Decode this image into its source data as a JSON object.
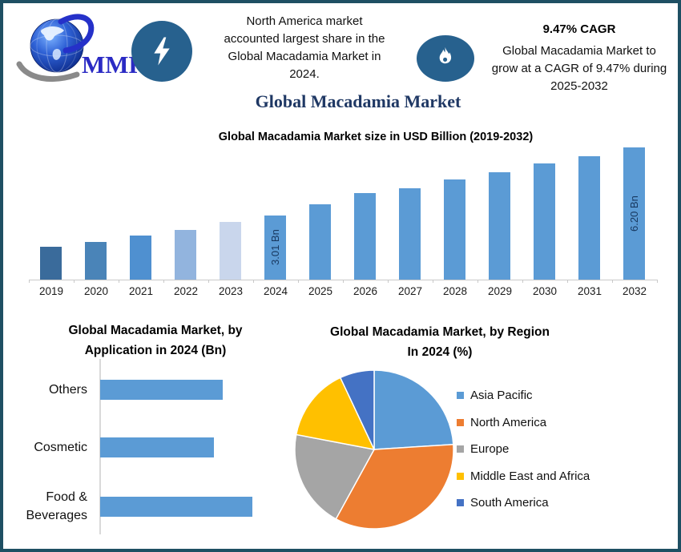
{
  "frame": {
    "border_color": "#1e4f63",
    "background": "#ffffff"
  },
  "header": {
    "logo": {
      "text": "MMR",
      "text_color": "#2b2bc4",
      "icon": "globe-icon"
    },
    "badge_color": "#27618e",
    "highlight": {
      "icon": "lightning-icon",
      "lines": [
        "North America market",
        "accounted largest share in the",
        "Global Macadamia Market in",
        "2024."
      ]
    },
    "cagr": {
      "icon": "flame-icon",
      "title": "9.47% CAGR",
      "lines": [
        "Global Macadamia Market to",
        "grow at a CAGR of 9.47% during",
        "2025-2032"
      ]
    }
  },
  "page_title": "Global Macadamia Market",
  "page_title_color": "#1f3864",
  "chart_data": [
    {
      "name": "market-size-by-year",
      "type": "bar",
      "title": "Global Macadamia Market size in USD Billion (2019-2032)",
      "xlabel": "",
      "ylabel": "USD Billion",
      "categories": [
        "2019",
        "2020",
        "2021",
        "2022",
        "2023",
        "2024",
        "2025",
        "2026",
        "2027",
        "2028",
        "2029",
        "2030",
        "2031",
        "2032"
      ],
      "values": [
        1.55,
        1.78,
        2.07,
        2.34,
        2.71,
        3.01,
        3.55,
        4.05,
        4.3,
        4.7,
        5.05,
        5.45,
        5.8,
        6.2
      ],
      "data_labels": [
        "",
        "",
        "",
        "",
        "",
        "3.01 Bn",
        "",
        "",
        "",
        "",
        "",
        "",
        "",
        "6.20 Bn"
      ],
      "data_label_color": "#17375e",
      "bar_colors": [
        "#3a6b9b",
        "#4a84b8",
        "#4f90d0",
        "#92b4de",
        "#c9d6ec",
        "#5b9bd5",
        "#5b9bd5",
        "#5b9bd5",
        "#5b9bd5",
        "#5b9bd5",
        "#5b9bd5",
        "#5b9bd5",
        "#5b9bd5",
        "#5b9bd5"
      ],
      "ylim": [
        0,
        6.5
      ],
      "grid": false,
      "legend_position": "none"
    },
    {
      "name": "by-application-2024",
      "type": "bar",
      "orientation": "horizontal",
      "title": "Global Macadamia Market, by Application in 2024 (Bn)",
      "title_lines": [
        "Global Macadamia Market, by",
        "Application in 2024 (Bn)"
      ],
      "categories": [
        "Others",
        "Cosmetic",
        "Food & Beverages"
      ],
      "values": [
        0.95,
        0.88,
        1.18
      ],
      "bar_color": "#5b9bd5",
      "xlim": [
        0,
        1.25
      ],
      "grid": false,
      "legend_position": "none"
    },
    {
      "name": "by-region-2024",
      "type": "pie",
      "title": "Global Macadamia Market, by Region In 2024 (%)",
      "title_lines": [
        "Global Macadamia Market, by Region",
        "In 2024 (%)"
      ],
      "labels": [
        "Asia Pacific",
        "North America",
        "Europe",
        "Middle East and Africa",
        "South America"
      ],
      "values": [
        24,
        34,
        20,
        15,
        7
      ],
      "colors": [
        "#5b9bd5",
        "#ed7d31",
        "#a5a5a5",
        "#ffc000",
        "#4472c4"
      ],
      "start_angle": "12-oclock-clockwise",
      "legend_position": "right"
    }
  ]
}
